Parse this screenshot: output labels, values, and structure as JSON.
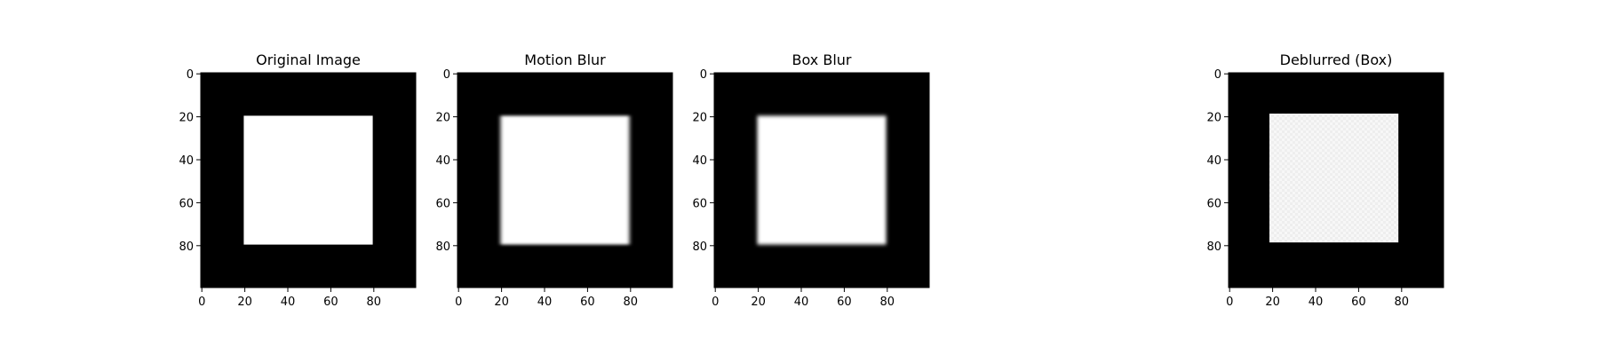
{
  "colors": {
    "background": "#ffffff",
    "image_black": "#000000",
    "image_white": "#ffffff",
    "axis": "#000000",
    "deblur_square": "#f6f6f6"
  },
  "chart_data": [
    {
      "type": "heatmap",
      "title": "Original Image",
      "image_size": [
        100,
        100
      ],
      "xlim": [
        -0.5,
        99.5
      ],
      "ylim": [
        99.5,
        -0.5
      ],
      "xticks": [
        0,
        20,
        40,
        60,
        80
      ],
      "yticks": [
        0,
        20,
        40,
        60,
        80
      ],
      "colormap": "gray",
      "square": {
        "x0": 20,
        "x1": 80,
        "y0": 20,
        "y1": 80,
        "value": 1.0
      },
      "background_value": 0.0,
      "blur": "none"
    },
    {
      "type": "heatmap",
      "title": "Motion Blur",
      "image_size": [
        100,
        100
      ],
      "xlim": [
        -0.5,
        99.5
      ],
      "ylim": [
        99.5,
        -0.5
      ],
      "xticks": [
        0,
        20,
        40,
        60,
        80
      ],
      "yticks": [
        0,
        20,
        40,
        60,
        80
      ],
      "colormap": "gray",
      "square": {
        "x0": 20,
        "x1": 80,
        "y0": 20,
        "y1": 80,
        "value": 1.0
      },
      "background_value": 0.0,
      "blur": "motion"
    },
    {
      "type": "heatmap",
      "title": "Box Blur",
      "image_size": [
        100,
        100
      ],
      "xlim": [
        -0.5,
        99.5
      ],
      "ylim": [
        99.5,
        -0.5
      ],
      "xticks": [
        0,
        20,
        40,
        60,
        80
      ],
      "yticks": [
        0,
        20,
        40,
        60,
        80
      ],
      "colormap": "gray",
      "square": {
        "x0": 20,
        "x1": 80,
        "y0": 20,
        "y1": 80,
        "value": 1.0
      },
      "background_value": 0.0,
      "blur": "box"
    },
    {
      "type": "heatmap",
      "title": "Deblurred (Box)",
      "image_size": [
        100,
        100
      ],
      "xlim": [
        -0.5,
        99.5
      ],
      "ylim": [
        99.5,
        -0.5
      ],
      "xticks": [
        0,
        20,
        40,
        60,
        80
      ],
      "yticks": [
        0,
        20,
        40,
        60,
        80
      ],
      "colormap": "gray",
      "square": {
        "x0": 19,
        "x1": 79,
        "y0": 19,
        "y1": 79,
        "value": 0.97
      },
      "background_value": 0.0,
      "blur": "none"
    }
  ]
}
